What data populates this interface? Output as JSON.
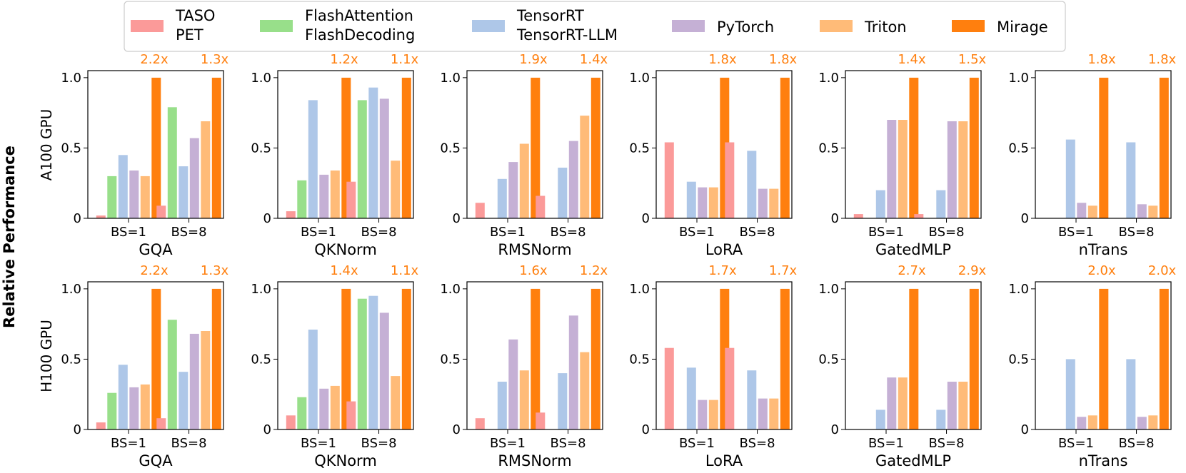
{
  "figure": {
    "ylabel": "Relative Performance",
    "row_labels": [
      "A100 GPU",
      "H100 GPU"
    ]
  },
  "legend": {
    "placement": "top-center",
    "entries": [
      {
        "key": "taso_pet",
        "lines": [
          "TASO",
          "PET"
        ],
        "color": "#fb9a99"
      },
      {
        "key": "flash",
        "lines": [
          "FlashAttention",
          "FlashDecoding"
        ],
        "color": "#98df8a"
      },
      {
        "key": "tensorrt",
        "lines": [
          "TensorRT",
          "TensorRT-LLM"
        ],
        "color": "#aec7e8"
      },
      {
        "key": "pytorch",
        "lines": [
          "PyTorch"
        ],
        "color": "#c5b0d5"
      },
      {
        "key": "triton",
        "lines": [
          "Triton"
        ],
        "color": "#ffbb78"
      },
      {
        "key": "mirage",
        "lines": [
          "Mirage"
        ],
        "color": "#ff7f0e"
      }
    ]
  },
  "chart_data": [
    {
      "type": "bar",
      "row": "A100 GPU",
      "xlabel": "GQA",
      "categories": [
        "BS=1",
        "BS=8"
      ],
      "ylim": [
        0,
        1.05
      ],
      "yticks": [
        "0",
        "0.5",
        "1.0"
      ],
      "speedups": [
        "2.2x",
        "1.3x"
      ],
      "series": [
        {
          "name": "TASO/PET",
          "values": [
            0.02,
            0.09
          ]
        },
        {
          "name": "FlashAttention/FlashDecoding",
          "values": [
            0.3,
            0.79
          ]
        },
        {
          "name": "TensorRT/TensorRT-LLM",
          "values": [
            0.45,
            0.37
          ]
        },
        {
          "name": "PyTorch",
          "values": [
            0.34,
            0.57
          ]
        },
        {
          "name": "Triton",
          "values": [
            0.3,
            0.69
          ]
        },
        {
          "name": "Mirage",
          "values": [
            1.0,
            1.0
          ]
        }
      ]
    },
    {
      "type": "bar",
      "row": "A100 GPU",
      "xlabel": "QKNorm",
      "categories": [
        "BS=1",
        "BS=8"
      ],
      "ylim": [
        0,
        1.05
      ],
      "yticks": [
        "0",
        "0.5",
        "1.0"
      ],
      "speedups": [
        "1.2x",
        "1.1x"
      ],
      "series": [
        {
          "name": "TASO/PET",
          "values": [
            0.05,
            0.26
          ]
        },
        {
          "name": "FlashAttention/FlashDecoding",
          "values": [
            0.27,
            0.84
          ]
        },
        {
          "name": "TensorRT/TensorRT-LLM",
          "values": [
            0.84,
            0.93
          ]
        },
        {
          "name": "PyTorch",
          "values": [
            0.31,
            0.85
          ]
        },
        {
          "name": "Triton",
          "values": [
            0.34,
            0.41
          ]
        },
        {
          "name": "Mirage",
          "values": [
            1.0,
            1.0
          ]
        }
      ]
    },
    {
      "type": "bar",
      "row": "A100 GPU",
      "xlabel": "RMSNorm",
      "categories": [
        "BS=1",
        "BS=8"
      ],
      "ylim": [
        0,
        1.05
      ],
      "yticks": [
        "0",
        "0.5",
        "1.0"
      ],
      "speedups": [
        "1.9x",
        "1.4x"
      ],
      "series": [
        {
          "name": "TASO/PET",
          "values": [
            0.11,
            0.16
          ]
        },
        {
          "name": "FlashAttention/FlashDecoding",
          "values": [
            0,
            0
          ]
        },
        {
          "name": "TensorRT/TensorRT-LLM",
          "values": [
            0.28,
            0.36
          ]
        },
        {
          "name": "PyTorch",
          "values": [
            0.4,
            0.55
          ]
        },
        {
          "name": "Triton",
          "values": [
            0.53,
            0.73
          ]
        },
        {
          "name": "Mirage",
          "values": [
            1.0,
            1.0
          ]
        }
      ]
    },
    {
      "type": "bar",
      "row": "A100 GPU",
      "xlabel": "LoRA",
      "categories": [
        "BS=1",
        "BS=8"
      ],
      "ylim": [
        0,
        1.05
      ],
      "yticks": [
        "0",
        "0.5",
        "1.0"
      ],
      "speedups": [
        "1.8x",
        "1.8x"
      ],
      "series": [
        {
          "name": "TASO/PET",
          "values": [
            0.54,
            0.54
          ]
        },
        {
          "name": "FlashAttention/FlashDecoding",
          "values": [
            0,
            0
          ]
        },
        {
          "name": "TensorRT/TensorRT-LLM",
          "values": [
            0.26,
            0.48
          ]
        },
        {
          "name": "PyTorch",
          "values": [
            0.22,
            0.21
          ]
        },
        {
          "name": "Triton",
          "values": [
            0.22,
            0.21
          ]
        },
        {
          "name": "Mirage",
          "values": [
            1.0,
            1.0
          ]
        }
      ]
    },
    {
      "type": "bar",
      "row": "A100 GPU",
      "xlabel": "GatedMLP",
      "categories": [
        "BS=1",
        "BS=8"
      ],
      "ylim": [
        0,
        1.05
      ],
      "yticks": [
        "0",
        "0.5",
        "1.0"
      ],
      "speedups": [
        "1.4x",
        "1.5x"
      ],
      "series": [
        {
          "name": "TASO/PET",
          "values": [
            0.03,
            0.03
          ]
        },
        {
          "name": "FlashAttention/FlashDecoding",
          "values": [
            0,
            0
          ]
        },
        {
          "name": "TensorRT/TensorRT-LLM",
          "values": [
            0.2,
            0.2
          ]
        },
        {
          "name": "PyTorch",
          "values": [
            0.7,
            0.69
          ]
        },
        {
          "name": "Triton",
          "values": [
            0.7,
            0.69
          ]
        },
        {
          "name": "Mirage",
          "values": [
            1.0,
            1.0
          ]
        }
      ]
    },
    {
      "type": "bar",
      "row": "A100 GPU",
      "xlabel": "nTrans",
      "categories": [
        "BS=1",
        "BS=8"
      ],
      "ylim": [
        0,
        1.05
      ],
      "yticks": [
        "0",
        "0.5",
        "1.0"
      ],
      "speedups": [
        "1.8x",
        "1.8x"
      ],
      "series": [
        {
          "name": "TASO/PET",
          "values": [
            0,
            0
          ]
        },
        {
          "name": "FlashAttention/FlashDecoding",
          "values": [
            0,
            0
          ]
        },
        {
          "name": "TensorRT/TensorRT-LLM",
          "values": [
            0.56,
            0.54
          ]
        },
        {
          "name": "PyTorch",
          "values": [
            0.11,
            0.1
          ]
        },
        {
          "name": "Triton",
          "values": [
            0.09,
            0.09
          ]
        },
        {
          "name": "Mirage",
          "values": [
            1.0,
            1.0
          ]
        }
      ]
    },
    {
      "type": "bar",
      "row": "H100 GPU",
      "xlabel": "GQA",
      "categories": [
        "BS=1",
        "BS=8"
      ],
      "ylim": [
        0,
        1.05
      ],
      "yticks": [
        "0",
        "0.5",
        "1.0"
      ],
      "speedups": [
        "2.2x",
        "1.3x"
      ],
      "series": [
        {
          "name": "TASO/PET",
          "values": [
            0.05,
            0.08
          ]
        },
        {
          "name": "FlashAttention/FlashDecoding",
          "values": [
            0.26,
            0.78
          ]
        },
        {
          "name": "TensorRT/TensorRT-LLM",
          "values": [
            0.46,
            0.41
          ]
        },
        {
          "name": "PyTorch",
          "values": [
            0.3,
            0.68
          ]
        },
        {
          "name": "Triton",
          "values": [
            0.32,
            0.7
          ]
        },
        {
          "name": "Mirage",
          "values": [
            1.0,
            1.0
          ]
        }
      ]
    },
    {
      "type": "bar",
      "row": "H100 GPU",
      "xlabel": "QKNorm",
      "categories": [
        "BS=1",
        "BS=8"
      ],
      "ylim": [
        0,
        1.05
      ],
      "yticks": [
        "0",
        "0.5",
        "1.0"
      ],
      "speedups": [
        "1.4x",
        "1.1x"
      ],
      "series": [
        {
          "name": "TASO/PET",
          "values": [
            0.1,
            0.2
          ]
        },
        {
          "name": "FlashAttention/FlashDecoding",
          "values": [
            0.23,
            0.93
          ]
        },
        {
          "name": "TensorRT/TensorRT-LLM",
          "values": [
            0.71,
            0.95
          ]
        },
        {
          "name": "PyTorch",
          "values": [
            0.29,
            0.83
          ]
        },
        {
          "name": "Triton",
          "values": [
            0.31,
            0.38
          ]
        },
        {
          "name": "Mirage",
          "values": [
            1.0,
            1.0
          ]
        }
      ]
    },
    {
      "type": "bar",
      "row": "H100 GPU",
      "xlabel": "RMSNorm",
      "categories": [
        "BS=1",
        "BS=8"
      ],
      "ylim": [
        0,
        1.05
      ],
      "yticks": [
        "0",
        "0.5",
        "1.0"
      ],
      "speedups": [
        "1.6x",
        "1.2x"
      ],
      "series": [
        {
          "name": "TASO/PET",
          "values": [
            0.08,
            0.12
          ]
        },
        {
          "name": "FlashAttention/FlashDecoding",
          "values": [
            0,
            0
          ]
        },
        {
          "name": "TensorRT/TensorRT-LLM",
          "values": [
            0.34,
            0.4
          ]
        },
        {
          "name": "PyTorch",
          "values": [
            0.64,
            0.81
          ]
        },
        {
          "name": "Triton",
          "values": [
            0.42,
            0.55
          ]
        },
        {
          "name": "Mirage",
          "values": [
            1.0,
            1.0
          ]
        }
      ]
    },
    {
      "type": "bar",
      "row": "H100 GPU",
      "xlabel": "LoRA",
      "categories": [
        "BS=1",
        "BS=8"
      ],
      "ylim": [
        0,
        1.05
      ],
      "yticks": [
        "0",
        "0.5",
        "1.0"
      ],
      "speedups": [
        "1.7x",
        "1.7x"
      ],
      "series": [
        {
          "name": "TASO/PET",
          "values": [
            0.58,
            0.58
          ]
        },
        {
          "name": "FlashAttention/FlashDecoding",
          "values": [
            0,
            0
          ]
        },
        {
          "name": "TensorRT/TensorRT-LLM",
          "values": [
            0.44,
            0.42
          ]
        },
        {
          "name": "PyTorch",
          "values": [
            0.21,
            0.22
          ]
        },
        {
          "name": "Triton",
          "values": [
            0.21,
            0.22
          ]
        },
        {
          "name": "Mirage",
          "values": [
            1.0,
            1.0
          ]
        }
      ]
    },
    {
      "type": "bar",
      "row": "H100 GPU",
      "xlabel": "GatedMLP",
      "categories": [
        "BS=1",
        "BS=8"
      ],
      "ylim": [
        0,
        1.05
      ],
      "yticks": [
        "0",
        "0.5",
        "1.0"
      ],
      "speedups": [
        "2.7x",
        "2.9x"
      ],
      "series": [
        {
          "name": "TASO/PET",
          "values": [
            0,
            0
          ]
        },
        {
          "name": "FlashAttention/FlashDecoding",
          "values": [
            0,
            0
          ]
        },
        {
          "name": "TensorRT/TensorRT-LLM",
          "values": [
            0.14,
            0.14
          ]
        },
        {
          "name": "PyTorch",
          "values": [
            0.37,
            0.34
          ]
        },
        {
          "name": "Triton",
          "values": [
            0.37,
            0.34
          ]
        },
        {
          "name": "Mirage",
          "values": [
            1.0,
            1.0
          ]
        }
      ]
    },
    {
      "type": "bar",
      "row": "H100 GPU",
      "xlabel": "nTrans",
      "categories": [
        "BS=1",
        "BS=8"
      ],
      "ylim": [
        0,
        1.05
      ],
      "yticks": [
        "0",
        "0.5",
        "1.0"
      ],
      "speedups": [
        "2.0x",
        "2.0x"
      ],
      "series": [
        {
          "name": "TASO/PET",
          "values": [
            0,
            0
          ]
        },
        {
          "name": "FlashAttention/FlashDecoding",
          "values": [
            0,
            0
          ]
        },
        {
          "name": "TensorRT/TensorRT-LLM",
          "values": [
            0.5,
            0.5
          ]
        },
        {
          "name": "PyTorch",
          "values": [
            0.09,
            0.09
          ]
        },
        {
          "name": "Triton",
          "values": [
            0.1,
            0.1
          ]
        },
        {
          "name": "Mirage",
          "values": [
            1.0,
            1.0
          ]
        }
      ]
    }
  ]
}
